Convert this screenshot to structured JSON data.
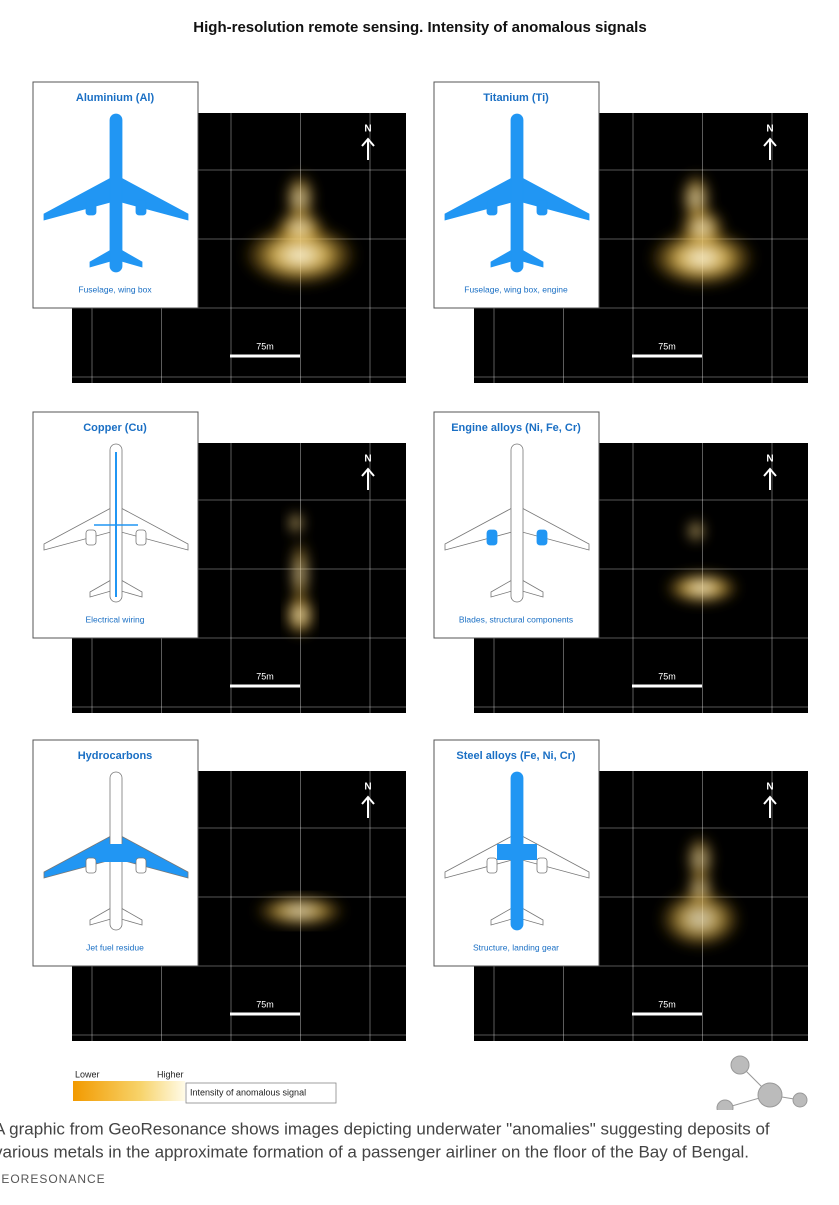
{
  "title": "High-resolution remote sensing. Intensity of anomalous signals",
  "panels": [
    {
      "title": "Aluminium (Al)",
      "caption": "Fuselage, wing box",
      "north": "N",
      "scale": "75m"
    },
    {
      "title": "Titanium (Ti)",
      "caption": "Fuselage, wing box, engine",
      "north": "N",
      "scale": "75m"
    },
    {
      "title": "Copper (Cu)",
      "caption": "Electrical wiring",
      "north": "N",
      "scale": "75m"
    },
    {
      "title": "Engine alloys (Ni, Fe, Cr)",
      "caption": "Blades, structural components",
      "north": "N",
      "scale": "75m"
    },
    {
      "title": "Hydrocarbons",
      "caption": "Jet fuel residue",
      "north": "N",
      "scale": "75m"
    },
    {
      "title": "Steel alloys (Fe, Ni, Cr)",
      "caption": "Structure, landing gear",
      "north": "N",
      "scale": "75m"
    }
  ],
  "legend": {
    "low": "Lower",
    "high": "Higher",
    "label": "Intensity of anomalous signal"
  },
  "caption": {
    "lines": [
      "A graphic from GeoResonance shows images depicting underwater \"anomalies\" suggesting deposits of",
      "various metals in the approximate formation of a passenger airliner on the floor of the Bay of Bengal."
    ]
  },
  "credit": "GEORESONANCE"
}
